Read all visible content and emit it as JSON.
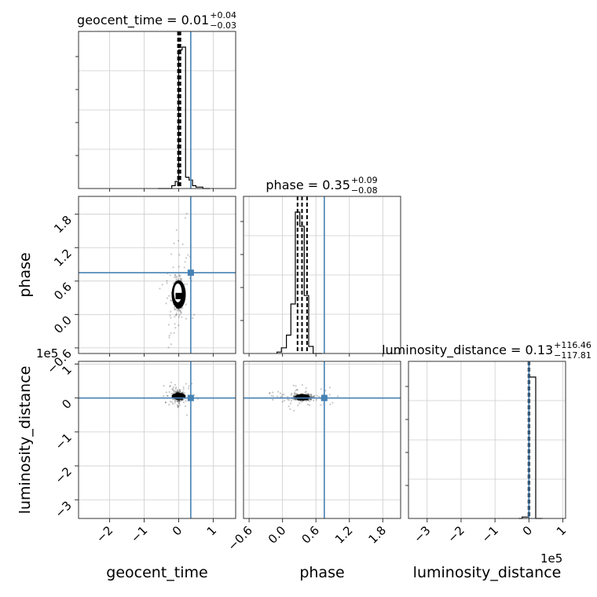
{
  "chart_data": {
    "type": "corner",
    "parameters": [
      "geocent_time",
      "phase",
      "luminosity_distance"
    ],
    "axis_labels": {
      "geocent_time": "geocent_time",
      "phase": "phase",
      "luminosity_distance": "luminosity_distance"
    },
    "ranges": {
      "geocent_time": [
        -2.9,
        1.65
      ],
      "phase": [
        -0.7,
        2.12
      ],
      "luminosity_distance": [
        -3.55,
        1.08
      ]
    },
    "ticks": {
      "geocent_time": {
        "values": [
          -2,
          -1,
          0,
          1
        ],
        "labels": [
          "−2",
          "−1",
          "0",
          "1"
        ],
        "offset_text": ""
      },
      "phase": {
        "values": [
          -0.6,
          0.0,
          0.6,
          1.2,
          1.8
        ],
        "labels": [
          "−0.6",
          "0.0",
          "0.6",
          "1.2",
          "1.8"
        ],
        "offset_text": ""
      },
      "luminosity_distance": {
        "values": [
          -3,
          -2,
          -1,
          0,
          1
        ],
        "labels": [
          "−3",
          "−2",
          "−1",
          "0",
          "1"
        ],
        "offset_text": "1e5"
      }
    },
    "truths": {
      "geocent_time": 0.35,
      "phase": 0.75,
      "luminosity_distance": 0.0
    },
    "truth_color": "#4682b4",
    "hist_color": "#000000",
    "titles": [
      {
        "param": "geocent_time",
        "label": "geocent_time",
        "median": "0.01",
        "plus": "+0.04",
        "minus": "−0.03"
      },
      {
        "param": "phase",
        "label": "phase",
        "median": "0.35",
        "plus": "+0.09",
        "minus": "−0.08"
      },
      {
        "param": "luminosity_distance",
        "label": "luminosity_distance",
        "median": "0.13",
        "plus": "+116.46",
        "minus": "−117.81"
      }
    ],
    "quantiles": {
      "geocent_time": [
        -0.02,
        0.01,
        0.05
      ],
      "phase": [
        0.27,
        0.35,
        0.44
      ],
      "luminosity_distance": [
        -0.012,
        0.0013,
        0.012
      ]
    },
    "histograms": {
      "geocent_time": {
        "bin_edges": [
          -0.6,
          -0.5,
          -0.4,
          -0.3,
          -0.2,
          -0.1,
          0.0,
          0.1,
          0.2,
          0.3,
          0.4,
          0.5,
          0.6,
          0.7,
          0.8,
          0.9
        ],
        "counts": [
          0,
          0,
          0,
          0,
          0.02,
          0.05,
          0.98,
          1.0,
          0.08,
          0.06,
          0.02,
          0.01,
          0.01,
          0.0,
          0.0
        ]
      },
      "phase": {
        "bin_edges": [
          -0.1,
          -0.02,
          0.07,
          0.15,
          0.23,
          0.31,
          0.39,
          0.47,
          0.55,
          0.63,
          0.71
        ],
        "counts": [
          0.01,
          0.04,
          0.13,
          0.35,
          1.0,
          0.9,
          0.41,
          0.05,
          0.0,
          0.0
        ]
      },
      "luminosity_distance": {
        "bin_edges": [
          -0.3,
          -0.2,
          -0.1,
          0.0,
          0.2,
          0.3,
          0.4
        ],
        "counts": [
          0.0,
          0.01,
          0.01,
          1.0,
          0.0,
          0.0
        ]
      }
    },
    "scatter_2d": [
      {
        "x": "geocent_time",
        "y": "phase",
        "center": [
          0.0,
          0.36
        ],
        "spread_x": 0.05,
        "spread_y": 0.12
      },
      {
        "x": "geocent_time",
        "y": "luminosity_distance",
        "center": [
          0.0,
          0.05
        ],
        "spread_x": 0.06,
        "spread_y": 0.05
      },
      {
        "x": "phase",
        "y": "luminosity_distance",
        "center": [
          0.36,
          0.02
        ],
        "spread_x": 0.07,
        "spread_y": 0.04
      }
    ],
    "grid": true
  }
}
